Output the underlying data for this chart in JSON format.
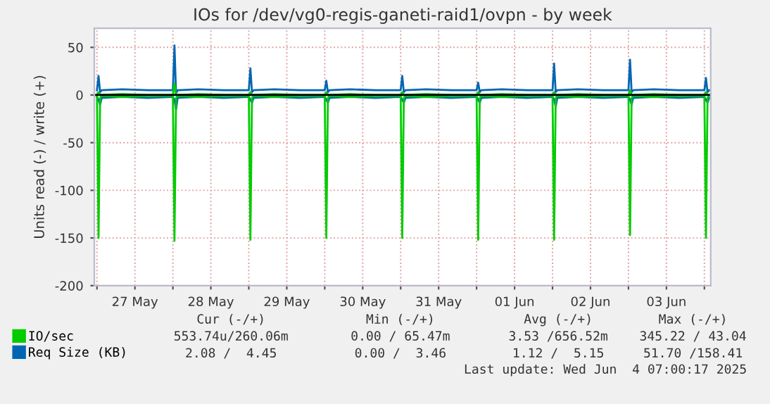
{
  "chart_data": {
    "type": "line",
    "title": "IOs for /dev/vg0-regis-ganeti-raid1/ovpn - by week",
    "ylabel": "Units read (-) / write (+)",
    "x": [
      "2025-05-27T00:00",
      "2025-05-27T00:30",
      "2025-05-27T01:00",
      "2025-05-27T01:30",
      "2025-05-27T08:00",
      "2025-05-27T16:00",
      "2025-05-28T00:00",
      "2025-05-28T00:30",
      "2025-05-28T01:00",
      "2025-05-28T01:30",
      "2025-05-28T08:00",
      "2025-05-28T16:00",
      "2025-05-29T00:00",
      "2025-05-29T00:30",
      "2025-05-29T01:00",
      "2025-05-29T01:30",
      "2025-05-29T08:00",
      "2025-05-29T16:00",
      "2025-05-30T00:00",
      "2025-05-30T00:30",
      "2025-05-30T01:00",
      "2025-05-30T01:30",
      "2025-05-30T08:00",
      "2025-05-30T16:00",
      "2025-05-31T00:00",
      "2025-05-31T00:30",
      "2025-05-31T01:00",
      "2025-05-31T01:30",
      "2025-05-31T08:00",
      "2025-05-31T16:00",
      "2025-06-01T00:00",
      "2025-06-01T00:30",
      "2025-06-01T01:00",
      "2025-06-01T01:30",
      "2025-06-01T08:00",
      "2025-06-01T16:00",
      "2025-06-02T00:00",
      "2025-06-02T00:30",
      "2025-06-02T01:00",
      "2025-06-02T01:30",
      "2025-06-02T08:00",
      "2025-06-02T16:00",
      "2025-06-03T00:00",
      "2025-06-03T00:30",
      "2025-06-03T01:00",
      "2025-06-03T01:30",
      "2025-06-03T08:00",
      "2025-06-03T16:00",
      "2025-06-04T00:00",
      "2025-06-04T00:30",
      "2025-06-04T01:00",
      "2025-06-04T01:30"
    ],
    "series": [
      {
        "name": "Req Size (KB)",
        "color": "#0066b3",
        "values": [
          5,
          20,
          3,
          5,
          6,
          5,
          5,
          52,
          2,
          5,
          6,
          5,
          5,
          28,
          3,
          5,
          6,
          5,
          5,
          15,
          3,
          5,
          6,
          5,
          5,
          20,
          3,
          5,
          6,
          5,
          5,
          13,
          3,
          5,
          6,
          5,
          5,
          33,
          3,
          5,
          6,
          5,
          5,
          37,
          3,
          5,
          6,
          5,
          5,
          18,
          3,
          5
        ]
      },
      {
        "color": "#0066b3",
        "values": [
          -2,
          -5,
          -10,
          -3,
          -2,
          -3,
          -2,
          -5,
          -15,
          -3,
          -2,
          -3,
          -2,
          -5,
          -8,
          -3,
          -2,
          -3,
          -2,
          -5,
          -8,
          -3,
          -2,
          -3,
          -2,
          -5,
          -8,
          -3,
          -2,
          -3,
          -2,
          -5,
          -8,
          -3,
          -2,
          -3,
          -2,
          -5,
          -12,
          -3,
          -2,
          -3,
          -2,
          -5,
          -10,
          -3,
          -2,
          -3,
          -2,
          -5,
          -8,
          -3
        ]
      },
      {
        "name": "IO/sec",
        "color": "#00cc00",
        "values": [
          0,
          3,
          0,
          0,
          1,
          0,
          0,
          12,
          0,
          0,
          1,
          0,
          0,
          3,
          0,
          0,
          1,
          0,
          0,
          3,
          0,
          0,
          1,
          0,
          0,
          3,
          0,
          0,
          1,
          0,
          0,
          3,
          0,
          0,
          1,
          0,
          0,
          3,
          0,
          0,
          1,
          0,
          0,
          5,
          0,
          0,
          1,
          0,
          0,
          3,
          0,
          0
        ]
      },
      {
        "color": "#00cc00",
        "values": [
          -1,
          -150,
          -3,
          -1,
          -2,
          -1,
          -1,
          -153,
          -3,
          -1,
          -2,
          -1,
          -1,
          -152,
          -3,
          -1,
          -2,
          -1,
          -1,
          -150,
          -3,
          -1,
          -2,
          -1,
          -1,
          -150,
          -3,
          -1,
          -2,
          -1,
          -1,
          -152,
          -3,
          -1,
          -2,
          -1,
          -1,
          -152,
          -3,
          -1,
          -2,
          -1,
          -1,
          -147,
          -3,
          -1,
          -2,
          -1,
          -1,
          -150,
          -3,
          -1
        ]
      }
    ],
    "xlim": [
      "2025-05-26T23:10",
      "2025-06-04T02:00"
    ],
    "xticks": [
      {
        "value": "2025-05-27T00:00",
        "label": null
      },
      {
        "value": "2025-05-27T12:00",
        "label": "27 May"
      },
      {
        "value": "2025-05-28T00:00",
        "label": null
      },
      {
        "value": "2025-05-28T12:00",
        "label": "28 May"
      },
      {
        "value": "2025-05-29T00:00",
        "label": null
      },
      {
        "value": "2025-05-29T12:00",
        "label": "29 May"
      },
      {
        "value": "2025-05-30T00:00",
        "label": null
      },
      {
        "value": "2025-05-30T12:00",
        "label": "30 May"
      },
      {
        "value": "2025-05-31T00:00",
        "label": null
      },
      {
        "value": "2025-05-31T12:00",
        "label": "31 May"
      },
      {
        "value": "2025-06-01T00:00",
        "label": null
      },
      {
        "value": "2025-06-01T12:00",
        "label": "01 Jun"
      },
      {
        "value": "2025-06-02T00:00",
        "label": null
      },
      {
        "value": "2025-06-02T12:00",
        "label": "02 Jun"
      },
      {
        "value": "2025-06-03T00:00",
        "label": null
      },
      {
        "value": "2025-06-03T12:00",
        "label": "03 Jun"
      },
      {
        "value": "2025-06-04T00:00",
        "label": null
      }
    ],
    "ylim": [
      -200,
      70
    ],
    "yticks": [
      -200,
      -150,
      -100,
      -50,
      0,
      50
    ],
    "ref_lines": [
      {
        "axis": "y",
        "value": 0,
        "color": "#000000"
      }
    ],
    "grid": true,
    "legend": "bottom left",
    "annotations": [
      "Cur (-/+)",
      "Min (-/+)",
      "Avg (-/+)",
      "Max (-/+)",
      "553.74u/260.06m",
      "0.00 / 65.47m",
      "3.53 /656.52m",
      "345.22 / 43.04",
      "2.08 /  4.45",
      "0.00 /  3.46",
      "1.12 /  5.15",
      "51.70 /158.41",
      "Last update: Wed Jun  4 07:00:17 2025"
    ]
  }
}
